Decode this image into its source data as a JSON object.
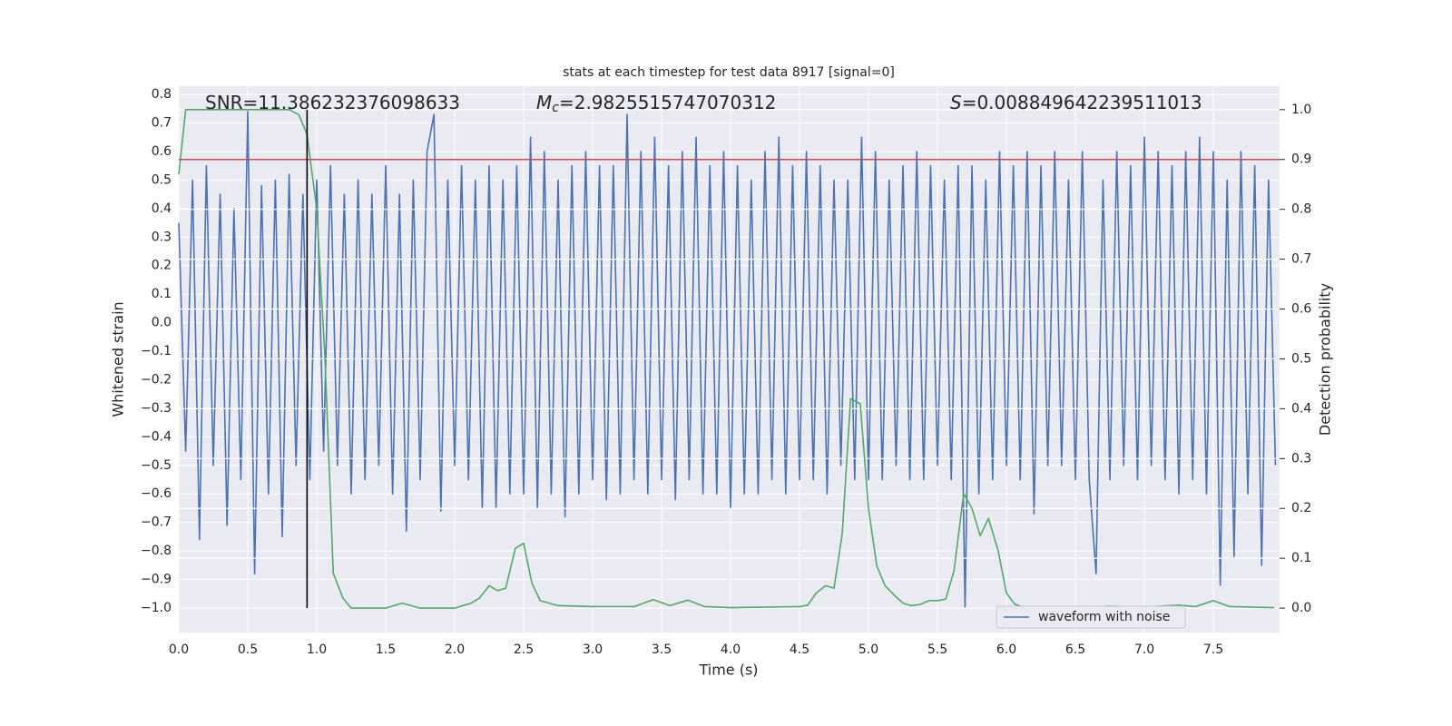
{
  "chart_data": {
    "type": "line",
    "title": "stats at each timestep for test data 8917 [signal=0]",
    "xlabel": "Time (s)",
    "ylabel": "Whitened strain",
    "y2label": "Detection probability",
    "xlim": [
      0,
      7.98
    ],
    "ylim": [
      -1.086,
      0.829
    ],
    "y2lim": [
      -0.049,
      1.047
    ],
    "xticks": [
      {
        "value": 0,
        "label": "0.0"
      },
      {
        "value": 0.5,
        "label": "0.5"
      },
      {
        "value": 1,
        "label": "1.0"
      },
      {
        "value": 1.5,
        "label": "1.5"
      },
      {
        "value": 2,
        "label": "2.0"
      },
      {
        "value": 2.5,
        "label": "2.5"
      },
      {
        "value": 3,
        "label": "3.0"
      },
      {
        "value": 3.5,
        "label": "3.5"
      },
      {
        "value": 4,
        "label": "4.0"
      },
      {
        "value": 4.5,
        "label": "4.5"
      },
      {
        "value": 5,
        "label": "5.0"
      },
      {
        "value": 5.5,
        "label": "5.5"
      },
      {
        "value": 6,
        "label": "6.0"
      },
      {
        "value": 6.5,
        "label": "6.5"
      },
      {
        "value": 7,
        "label": "7.0"
      },
      {
        "value": 7.5,
        "label": "7.5"
      }
    ],
    "yticks": [
      {
        "value": -1,
        "label": "−1.0"
      },
      {
        "value": -0.9,
        "label": "−0.9"
      },
      {
        "value": -0.8,
        "label": "−0.8"
      },
      {
        "value": -0.7,
        "label": "−0.7"
      },
      {
        "value": -0.6,
        "label": "−0.6"
      },
      {
        "value": -0.5,
        "label": "−0.5"
      },
      {
        "value": -0.4,
        "label": "−0.4"
      },
      {
        "value": -0.3,
        "label": "−0.3"
      },
      {
        "value": -0.2,
        "label": "−0.2"
      },
      {
        "value": -0.1,
        "label": "−0.1"
      },
      {
        "value": 0,
        "label": "0.0"
      },
      0.1,
      0.2,
      0.3,
      0.4,
      0.5,
      0.6,
      0.7,
      0.8
    ],
    "y2ticks": [
      {
        "value": 0,
        "label": "0.0"
      },
      0.1,
      0.2,
      0.3,
      0.4,
      0.5,
      0.6,
      0.7,
      0.8,
      0.9,
      {
        "value": 1,
        "label": "1.0"
      }
    ],
    "grid": true,
    "legend": "lower right",
    "series": [
      {
        "name": "waveform with noise",
        "color": "#4c72b0",
        "x": [
          0,
          0.05,
          0.1,
          0.15,
          0.2,
          0.25,
          0.3,
          0.35,
          0.4,
          0.45,
          0.5,
          0.55,
          0.6,
          0.65,
          0.7,
          0.75,
          0.8,
          0.85,
          0.9,
          0.95,
          1,
          1.05,
          1.1,
          1.15,
          1.2,
          1.25,
          1.3,
          1.35,
          1.4,
          1.45,
          1.5,
          1.55,
          1.6,
          1.65,
          1.7,
          1.75,
          1.8,
          1.85,
          1.9,
          1.95,
          2,
          2.05,
          2.1,
          2.15,
          2.2,
          2.25,
          2.3,
          2.35,
          2.4,
          2.45,
          2.5,
          2.55,
          2.6,
          2.65,
          2.7,
          2.75,
          2.8,
          2.85,
          2.9,
          2.95,
          3,
          3.05,
          3.1,
          3.15,
          3.2,
          3.25,
          3.3,
          3.35,
          3.4,
          3.45,
          3.5,
          3.55,
          3.6,
          3.65,
          3.7,
          3.75,
          3.8,
          3.85,
          3.9,
          3.95,
          4,
          4.05,
          4.1,
          4.15,
          4.2,
          4.25,
          4.3,
          4.35,
          4.4,
          4.45,
          4.5,
          4.55,
          4.6,
          4.65,
          4.7,
          4.75,
          4.8,
          4.85,
          4.9,
          4.95,
          5,
          5.05,
          5.1,
          5.15,
          5.2,
          5.25,
          5.3,
          5.35,
          5.4,
          5.45,
          5.5,
          5.55,
          5.6,
          5.65,
          5.7,
          5.75,
          5.8,
          5.85,
          5.9,
          5.95,
          6,
          6.05,
          6.1,
          6.15,
          6.2,
          6.25,
          6.3,
          6.35,
          6.4,
          6.45,
          6.5,
          6.55,
          6.6,
          6.65,
          6.7,
          6.75,
          6.8,
          6.85,
          6.9,
          6.95,
          7,
          7.05,
          7.1,
          7.15,
          7.2,
          7.25,
          7.3,
          7.35,
          7.4,
          7.45,
          7.5,
          7.55,
          7.6,
          7.65,
          7.7,
          7.75,
          7.8,
          7.85,
          7.9,
          7.95
        ],
        "values": [
          0.35,
          -0.45,
          0.5,
          -0.76,
          0.55,
          -0.5,
          0.45,
          -0.71,
          0.4,
          -0.55,
          0.74,
          -0.88,
          0.48,
          -0.6,
          0.5,
          -0.75,
          0.52,
          -0.5,
          0.45,
          -0.55,
          0.5,
          -0.45,
          0.55,
          -0.5,
          0.45,
          -0.6,
          0.5,
          -0.55,
          0.45,
          -0.5,
          0.55,
          -0.6,
          0.45,
          -0.73,
          0.5,
          -0.55,
          0.6,
          0.73,
          -0.66,
          0.5,
          -0.5,
          0.55,
          -0.55,
          0.5,
          -0.65,
          0.55,
          -0.65,
          0.5,
          -0.6,
          0.55,
          -0.6,
          0.65,
          -0.65,
          0.6,
          -0.6,
          0.5,
          -0.68,
          0.55,
          -0.6,
          0.6,
          -0.55,
          0.55,
          -0.62,
          0.55,
          -0.6,
          0.73,
          -0.55,
          0.6,
          -0.6,
          0.65,
          -0.55,
          0.55,
          -0.62,
          0.6,
          -0.55,
          0.65,
          -0.6,
          0.55,
          -0.6,
          0.6,
          -0.65,
          0.55,
          -0.6,
          0.5,
          -0.6,
          0.6,
          -0.55,
          0.65,
          -0.6,
          0.55,
          -0.55,
          0.6,
          -0.55,
          0.55,
          -0.6,
          0.5,
          -0.5,
          0.5,
          -0.55,
          0.65,
          -0.55,
          0.6,
          -0.55,
          0.5,
          -0.5,
          0.55,
          -0.55,
          0.6,
          -0.55,
          0.55,
          -0.5,
          0.5,
          -0.55,
          0.55,
          -1.0,
          0.55,
          -0.6,
          0.5,
          -0.55,
          0.6,
          -0.5,
          0.55,
          -0.55,
          0.6,
          -0.67,
          0.55,
          -0.5,
          0.6,
          -0.5,
          0.5,
          -0.55,
          0.6,
          -0.55,
          -0.88,
          0.5,
          -0.55,
          0.6,
          -0.5,
          0.55,
          -0.55,
          0.65,
          -0.5,
          0.6,
          -0.55,
          0.55,
          -0.6,
          0.6,
          -0.55,
          0.65,
          -0.6,
          0.6,
          -0.92,
          0.5,
          -0.82,
          0.6,
          -0.6,
          0.55,
          -0.85,
          0.5,
          -0.5
        ]
      },
      {
        "color": "#55a868",
        "axis": "y2",
        "x": [
          0,
          0.05,
          0.1,
          0.2,
          0.4,
          0.6,
          0.8,
          0.87,
          0.93,
          1,
          1.06,
          1.12,
          1.19,
          1.25,
          1.5,
          1.62,
          1.75,
          2,
          2.12,
          2.18,
          2.25,
          2.31,
          2.37,
          2.44,
          2.5,
          2.56,
          2.62,
          2.75,
          3,
          3.3,
          3.44,
          3.56,
          3.69,
          3.81,
          4,
          4.5,
          4.56,
          4.62,
          4.69,
          4.75,
          4.81,
          4.87,
          4.94,
          5,
          5.06,
          5.12,
          5.19,
          5.25,
          5.31,
          5.37,
          5.44,
          5.5,
          5.56,
          5.62,
          5.69,
          5.75,
          5.81,
          5.87,
          5.94,
          6,
          6.06,
          6.12,
          6.5,
          6.75,
          7,
          7.25,
          7.37,
          7.5,
          7.62,
          7.94
        ],
        "values": [
          0.87,
          1.0,
          1.0,
          1.0,
          1.0,
          1.0,
          1.0,
          0.99,
          0.95,
          0.8,
          0.5,
          0.07,
          0.02,
          0.0,
          0.0,
          0.01,
          0.0,
          0.0,
          0.01,
          0.02,
          0.045,
          0.035,
          0.04,
          0.12,
          0.13,
          0.05,
          0.015,
          0.005,
          0.003,
          0.003,
          0.017,
          0.005,
          0.016,
          0.003,
          0.001,
          0.003,
          0.006,
          0.03,
          0.045,
          0.04,
          0.15,
          0.42,
          0.41,
          0.2,
          0.085,
          0.045,
          0.025,
          0.01,
          0.005,
          0.007,
          0.015,
          0.015,
          0.018,
          0.075,
          0.23,
          0.2,
          0.145,
          0.18,
          0.115,
          0.03,
          0.008,
          0.002,
          0.001,
          0.004,
          0.002,
          0.006,
          0.003,
          0.015,
          0.003,
          0.001
        ]
      }
    ],
    "hline": {
      "value": 0.9,
      "axis": "y2",
      "color": "#c44e52"
    },
    "vline": {
      "x": 0.93,
      "ymin": 0,
      "ymax": 1,
      "axis": "y2",
      "color": "#000000"
    },
    "annotations": [
      {
        "text": "SNR=11.386232376098633"
      },
      {
        "symbol": "M",
        "sub": "c",
        "text": "=2.9825515747070312"
      },
      {
        "symbol": "S",
        "text": "=0.008849642239511013"
      }
    ]
  }
}
